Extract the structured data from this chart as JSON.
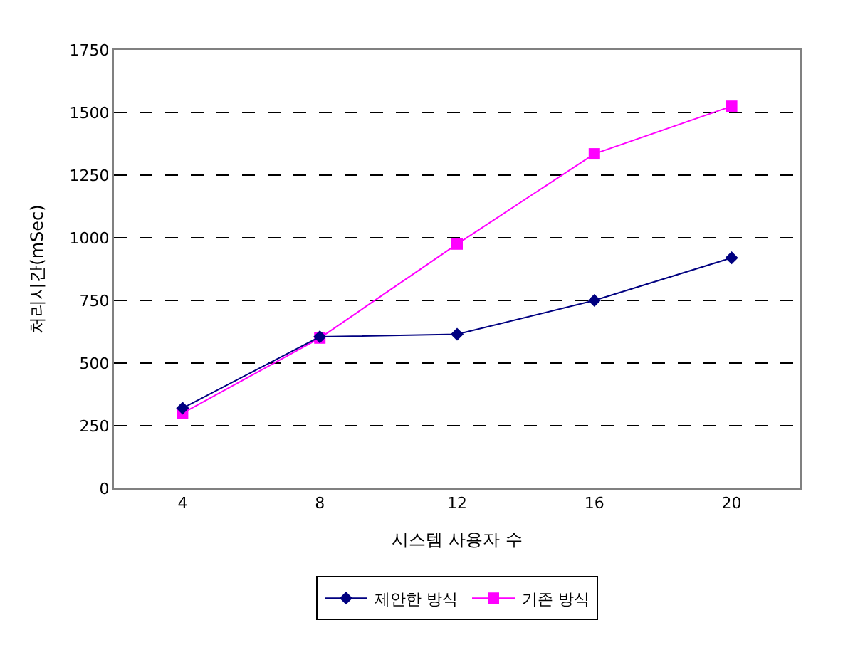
{
  "chart_data": {
    "type": "line",
    "xlabel": "시스템 사용자 수",
    "ylabel": "처리시간(mSec)",
    "categories": [
      "4",
      "8",
      "12",
      "16",
      "20"
    ],
    "series": [
      {
        "name": "제안한 방식",
        "color": "#000080",
        "marker": "diamond",
        "values": [
          320,
          605,
          615,
          750,
          920
        ]
      },
      {
        "name": "기존 방식",
        "color": "#ff00ff",
        "marker": "square",
        "values": [
          300,
          600,
          975,
          1335,
          1525
        ]
      }
    ],
    "ylim": [
      0,
      1750
    ],
    "yticks": [
      0,
      250,
      500,
      750,
      1000,
      1250,
      1500,
      1750
    ],
    "grid": "y",
    "legend": "bottom",
    "line_style": "solid"
  }
}
